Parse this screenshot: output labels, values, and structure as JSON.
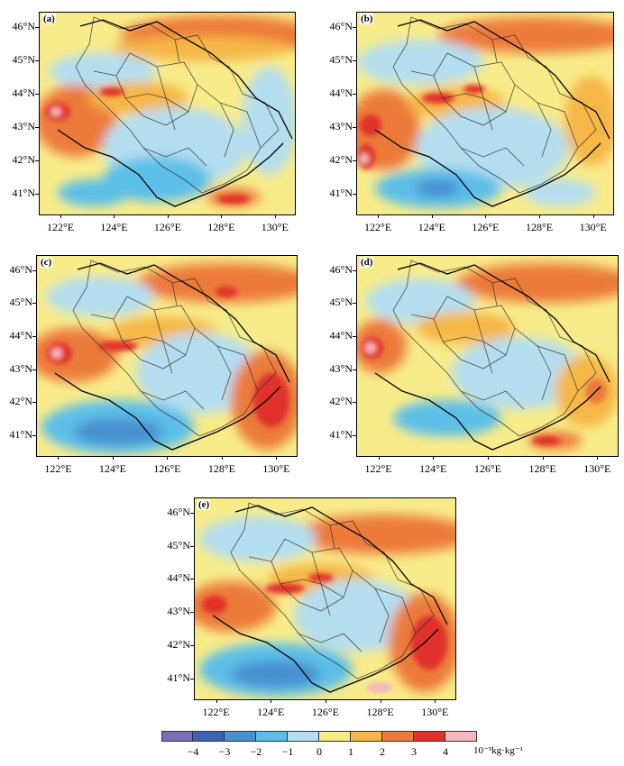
{
  "panels": [
    {
      "label": "(a)"
    },
    {
      "label": "(b)"
    },
    {
      "label": "(c)"
    },
    {
      "label": "(d)"
    },
    {
      "label": "(e)"
    }
  ],
  "lat_ticks": [
    "46°N",
    "45°N",
    "44°N",
    "43°N",
    "42°N",
    "41°N"
  ],
  "lon_ticks": [
    "122°E",
    "124°E",
    "126°E",
    "128°E",
    "130°E"
  ],
  "colorbar": {
    "colors": [
      "#7a6fb5",
      "#3d64b0",
      "#4a8fd0",
      "#5bbfe8",
      "#b4def0",
      "#f8ec8a",
      "#f6b746",
      "#ec7a3a",
      "#e0302c",
      "#f6b7bd"
    ],
    "tick_labels": [
      "−4",
      "−3",
      "−2",
      "−1",
      "0",
      "1",
      "2",
      "3",
      "4"
    ],
    "unit": "10⁻³kg·kg⁻¹"
  }
}
